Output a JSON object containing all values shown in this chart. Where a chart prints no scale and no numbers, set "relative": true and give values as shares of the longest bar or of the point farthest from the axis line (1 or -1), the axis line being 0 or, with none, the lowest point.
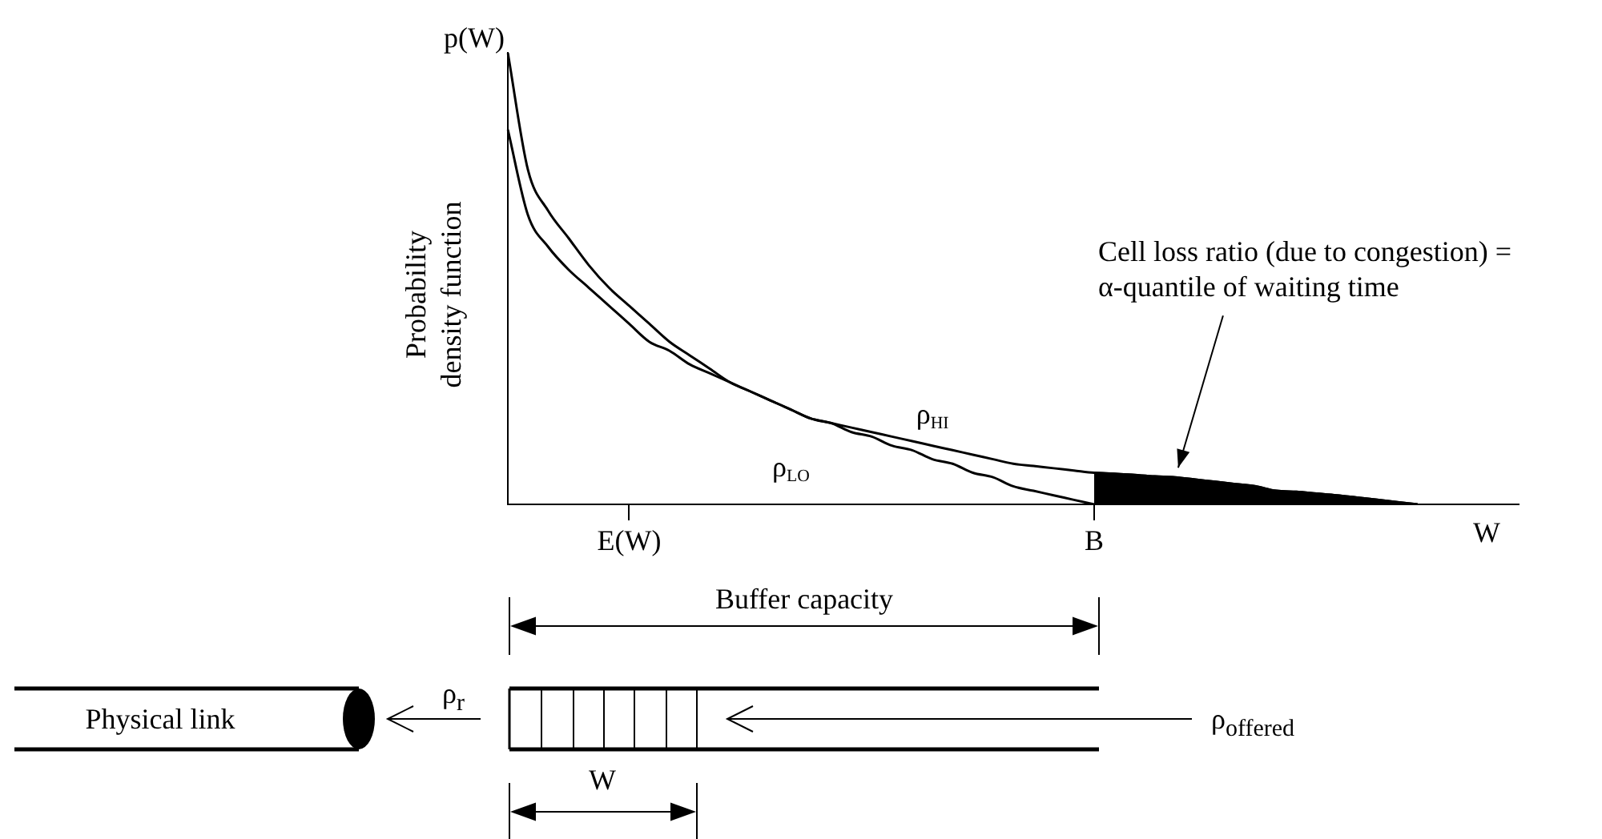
{
  "chart_data": {
    "type": "line",
    "relative": true,
    "ylabel": "Probability density function",
    "xlabel": "W",
    "legend": false,
    "marker": "none",
    "line_style": "solid",
    "categories": [
      null,
      null,
      null,
      null,
      null,
      null,
      "E(W)",
      null,
      null,
      null,
      null,
      null,
      null,
      null,
      null,
      null,
      null,
      null,
      null,
      null,
      null,
      null,
      null,
      null,
      null,
      null,
      null,
      null,
      null,
      "B",
      null,
      null,
      null,
      null,
      null,
      null,
      null,
      null,
      null,
      null,
      null,
      null,
      null,
      null,
      null,
      null,
      null,
      null,
      null,
      null,
      null
    ],
    "series": [
      {
        "name": "ρ$_{HI}$",
        "color": "#000000",
        "values": [
          1,
          0.74,
          0.65,
          0.59,
          0.53,
          0.48,
          0.44,
          0.4,
          0.36,
          0.33,
          0.3,
          0.27,
          0.25,
          0.23,
          0.21,
          0.19,
          0.18,
          0.17,
          0.16,
          0.15,
          0.14,
          0.13,
          0.12,
          0.11,
          0.1,
          0.09,
          0.085,
          0.08,
          0.075,
          0.07,
          0.068,
          0.065,
          0.062,
          0.06,
          0.055,
          0.05,
          0.045,
          0.04,
          0.03,
          0.028,
          0.024,
          0.02,
          0.015,
          0.01,
          0.005,
          0,
          null,
          null,
          null,
          null,
          null
        ]
      },
      {
        "name": "ρ$_{LO}$",
        "color": "#000000",
        "values": [
          0.83,
          0.64,
          0.57,
          0.52,
          0.48,
          0.44,
          0.4,
          0.36,
          0.34,
          0.31,
          0.29,
          0.27,
          0.25,
          0.23,
          0.21,
          0.19,
          0.18,
          0.16,
          0.15,
          0.13,
          0.12,
          0.1,
          0.09,
          0.07,
          0.06,
          0.04,
          0.03,
          0.02,
          0.01,
          0,
          null,
          null,
          null,
          null,
          null,
          null,
          null,
          null,
          null,
          null,
          null,
          null,
          null,
          null,
          null,
          null,
          null,
          null,
          null,
          null,
          null
        ]
      },
      {
        "type": "area",
        "color": "#000000",
        "values": [
          null,
          null,
          null,
          null,
          null,
          null,
          null,
          null,
          null,
          null,
          null,
          null,
          null,
          null,
          null,
          null,
          null,
          null,
          null,
          null,
          null,
          null,
          null,
          null,
          null,
          null,
          null,
          null,
          null,
          0.07,
          0.068,
          0.065,
          0.062,
          0.06,
          0.055,
          0.05,
          0.045,
          0.04,
          0.03,
          0.028,
          0.024,
          0.02,
          0.015,
          0.01,
          0.005,
          0,
          null,
          null,
          null,
          null,
          null
        ]
      }
    ],
    "annotations": [
      "p(W)",
      "Cell loss ratio (due to congestion) = α-quantile of waiting time",
      "Buffer capacity",
      "Physical link",
      "ρ$_{r}$",
      "ρ$_{offered}$",
      "W"
    ]
  }
}
